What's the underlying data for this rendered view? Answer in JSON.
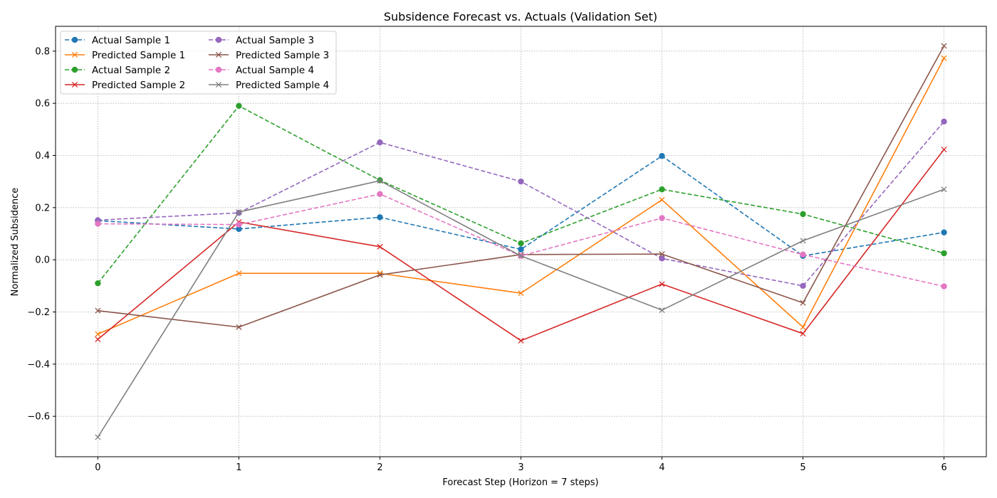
{
  "chart_data": {
    "type": "line",
    "title": "Subsidence Forecast vs. Actuals (Validation Set)",
    "xlabel": "Forecast Step (Horizon = 7 steps)",
    "ylabel": "Normalized Subsidence",
    "x": [
      0,
      1,
      2,
      3,
      4,
      5,
      6
    ],
    "xlim": [
      -0.3,
      6.3
    ],
    "ylim": [
      -0.755,
      0.895
    ],
    "yticks": [
      -0.6,
      -0.4,
      -0.2,
      0.0,
      0.2,
      0.4,
      0.6,
      0.8
    ],
    "ytick_labels": [
      "−0.6",
      "−0.4",
      "−0.2",
      "0.0",
      "0.2",
      "0.4",
      "0.6",
      "0.8"
    ],
    "xtick_labels": [
      "0",
      "1",
      "2",
      "3",
      "4",
      "5",
      "6"
    ],
    "grid": true,
    "legend_position": "top-left",
    "legend_columns": 2,
    "series": [
      {
        "name": "Actual Sample 1",
        "color": "#1f77b4",
        "style": "dashed",
        "marker": "circle",
        "values": [
          0.15,
          0.118,
          0.163,
          0.04,
          0.398,
          0.015,
          0.105
        ]
      },
      {
        "name": "Predicted Sample 1",
        "color": "#ff7f0e",
        "style": "solid",
        "marker": "x",
        "values": [
          -0.285,
          -0.052,
          -0.052,
          -0.128,
          0.23,
          -0.258,
          0.773
        ]
      },
      {
        "name": "Actual Sample 2",
        "color": "#2ca02c",
        "style": "dashed",
        "marker": "circle",
        "values": [
          -0.09,
          0.59,
          0.305,
          0.063,
          0.27,
          0.175,
          0.025
        ]
      },
      {
        "name": "Predicted Sample 2",
        "color": "#d62728",
        "style": "solid",
        "marker": "x",
        "values": [
          -0.305,
          0.145,
          0.05,
          -0.31,
          -0.093,
          -0.283,
          0.423
        ]
      },
      {
        "name": "Actual Sample 3",
        "color": "#9467bd",
        "style": "dashed",
        "marker": "circle",
        "values": [
          0.152,
          0.18,
          0.45,
          0.3,
          0.005,
          -0.1,
          0.53
        ]
      },
      {
        "name": "Predicted Sample 3",
        "color": "#8c564b",
        "style": "solid",
        "marker": "x",
        "values": [
          -0.195,
          -0.258,
          -0.058,
          0.02,
          0.022,
          -0.165,
          0.82
        ]
      },
      {
        "name": "Actual Sample 4",
        "color": "#e377c2",
        "style": "dashed",
        "marker": "circle",
        "values": [
          0.138,
          0.135,
          0.252,
          0.015,
          0.16,
          0.02,
          -0.102
        ]
      },
      {
        "name": "Predicted Sample 4",
        "color": "#7f7f7f",
        "style": "solid",
        "marker": "x",
        "values": [
          -0.68,
          0.183,
          0.303,
          0.015,
          -0.193,
          0.073,
          0.27
        ]
      }
    ]
  }
}
